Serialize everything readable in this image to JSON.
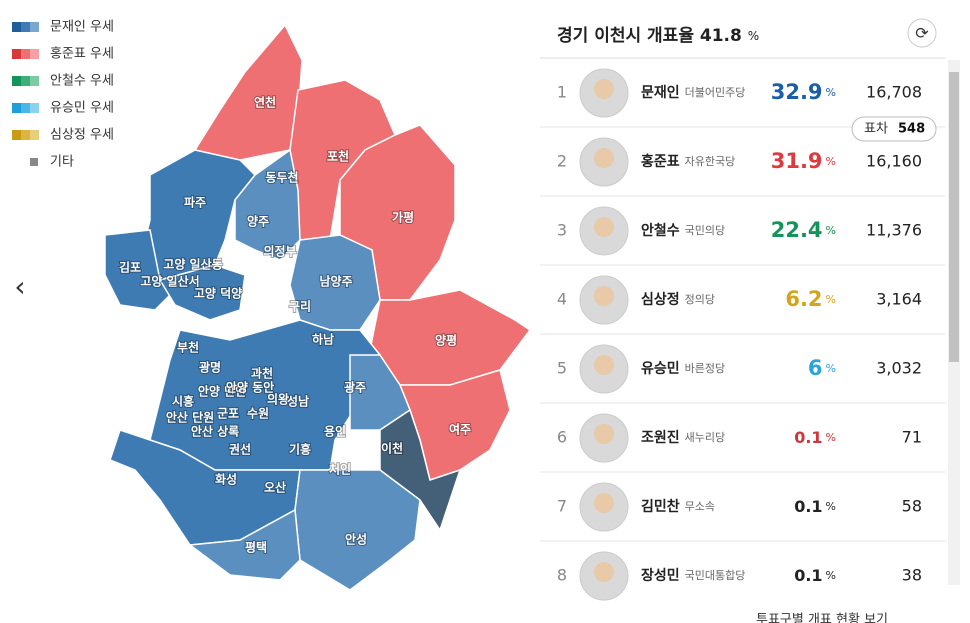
{
  "legend": [
    "문재인 우세",
    "홍준표 우세",
    "안철수 우세",
    "유승민 우세",
    "심상정 우세",
    "기타"
  ],
  "map": {
    "regions": [
      "연천",
      "포천",
      "동두천",
      "파주",
      "양주",
      "가평",
      "의정부",
      "김포",
      "고양 일산동",
      "고양 일산서",
      "고양 덕양",
      "남양주",
      "구리",
      "하남",
      "양평",
      "부천",
      "광명",
      "과천",
      "안양 만안",
      "안양 동안",
      "의왕",
      "성남",
      "광주",
      "시흥",
      "안산 단원",
      "안산 상록",
      "군포",
      "수원",
      "용인",
      "권선",
      "기흥",
      "이천",
      "여주",
      "화성",
      "오산",
      "처인",
      "평택",
      "안성"
    ]
  },
  "panel": {
    "title": "경기 이천시 개표율",
    "rate": 41.8,
    "rate_unit": "%",
    "diff_label": "표차",
    "diff": 548,
    "rows": [
      {
        "rank": 1,
        "name": "문재인",
        "party": "더불어민주당",
        "pct": 32.9,
        "unit": "%",
        "votes": "16,708"
      },
      {
        "rank": 2,
        "name": "홍준표",
        "party": "자유한국당",
        "pct": 31.9,
        "unit": "%",
        "votes": "16,160"
      },
      {
        "rank": 3,
        "name": "안철수",
        "party": "국민의당",
        "pct": 22.4,
        "unit": "%",
        "votes": "11,376"
      },
      {
        "rank": 4,
        "name": "심상정",
        "party": "정의당",
        "pct": 6.2,
        "unit": "%",
        "votes": "3,164"
      },
      {
        "rank": 5,
        "name": "유승민",
        "party": "바른정당",
        "pct": 6.0,
        "unit": "%",
        "votes": "3,032"
      },
      {
        "rank": 6,
        "name": "조원진",
        "party": "새누리당",
        "pct": 0.1,
        "unit": "%",
        "votes": "71"
      },
      {
        "rank": 7,
        "name": "김민찬",
        "party": "무소속",
        "pct": 0.1,
        "unit": "%",
        "votes": "58"
      },
      {
        "rank": 8,
        "name": "장성민",
        "party": "국민대통합당",
        "pct": 0.1,
        "unit": "%",
        "votes": "38"
      }
    ]
  },
  "footer": "투표구별 개표 현황 보기"
}
